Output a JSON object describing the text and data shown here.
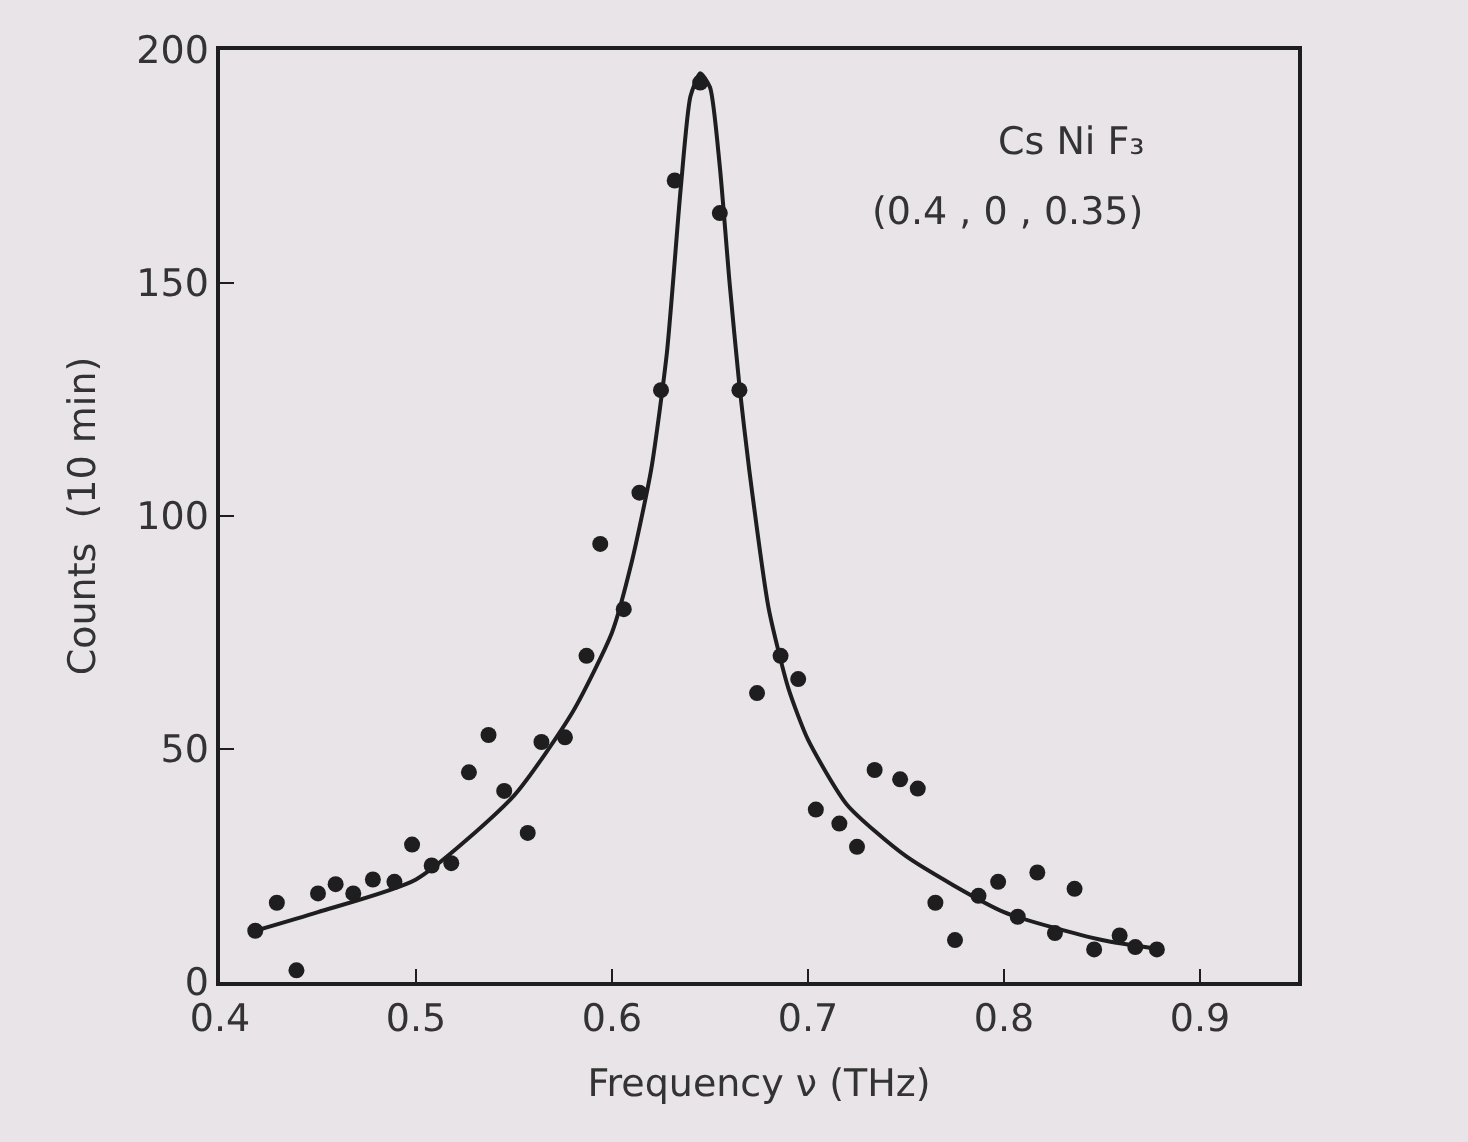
{
  "chart_data": {
    "type": "scatter",
    "xlabel": "Frequency ν (THz)",
    "ylabel": "Counts  (10 min)",
    "xlim": [
      0.4,
      0.95
    ],
    "xticks": [
      0.4,
      0.5,
      0.6,
      0.7,
      0.8,
      0.9
    ],
    "ylim": [
      0,
      200
    ],
    "yticks": [
      0,
      50,
      100,
      150,
      200
    ],
    "grid": false,
    "annotations": [
      "Cs Ni F₃",
      "(0.4 , 0 , 0.35)"
    ],
    "series": [
      {
        "color": "#1e1e1e",
        "marker": "circle",
        "x": [
          0.418,
          0.429,
          0.439,
          0.45,
          0.459,
          0.468,
          0.478,
          0.489,
          0.498,
          0.508,
          0.518,
          0.527,
          0.537,
          0.545,
          0.557,
          0.564,
          0.576,
          0.587,
          0.594,
          0.606,
          0.614,
          0.625,
          0.632,
          0.645,
          0.655,
          0.665,
          0.674,
          0.686,
          0.695,
          0.704,
          0.716,
          0.725,
          0.734,
          0.747,
          0.756,
          0.765,
          0.775,
          0.787,
          0.797,
          0.807,
          0.817,
          0.826,
          0.836,
          0.846,
          0.859,
          0.867,
          0.878
        ],
        "values": [
          11,
          17,
          2.5,
          19,
          21,
          19,
          22,
          21.5,
          29.5,
          25,
          25.5,
          45,
          53,
          41,
          32,
          51.5,
          52.5,
          70,
          94,
          80,
          105,
          127,
          172,
          193,
          165,
          127,
          62,
          70,
          65,
          37,
          34,
          29,
          45.5,
          43.5,
          41.5,
          17,
          9,
          18.5,
          21.5,
          14,
          23.5,
          10.5,
          20,
          7,
          10,
          7.5,
          7
        ]
      },
      {
        "type": "line",
        "color": "#1e1e1e",
        "marker": "none",
        "x": [
          0.418,
          0.45,
          0.5,
          0.55,
          0.58,
          0.6,
          0.61,
          0.62,
          0.628,
          0.635,
          0.64,
          0.645,
          0.65,
          0.655,
          0.66,
          0.665,
          0.67,
          0.68,
          0.69,
          0.7,
          0.72,
          0.75,
          0.8,
          0.85,
          0.88
        ],
        "values": [
          11,
          15,
          22,
          40,
          58,
          75,
          90,
          110,
          135,
          170,
          190,
          195,
          192,
          175,
          150,
          128,
          110,
          80,
          63,
          52,
          38,
          27,
          15,
          9,
          7
        ]
      }
    ]
  }
}
